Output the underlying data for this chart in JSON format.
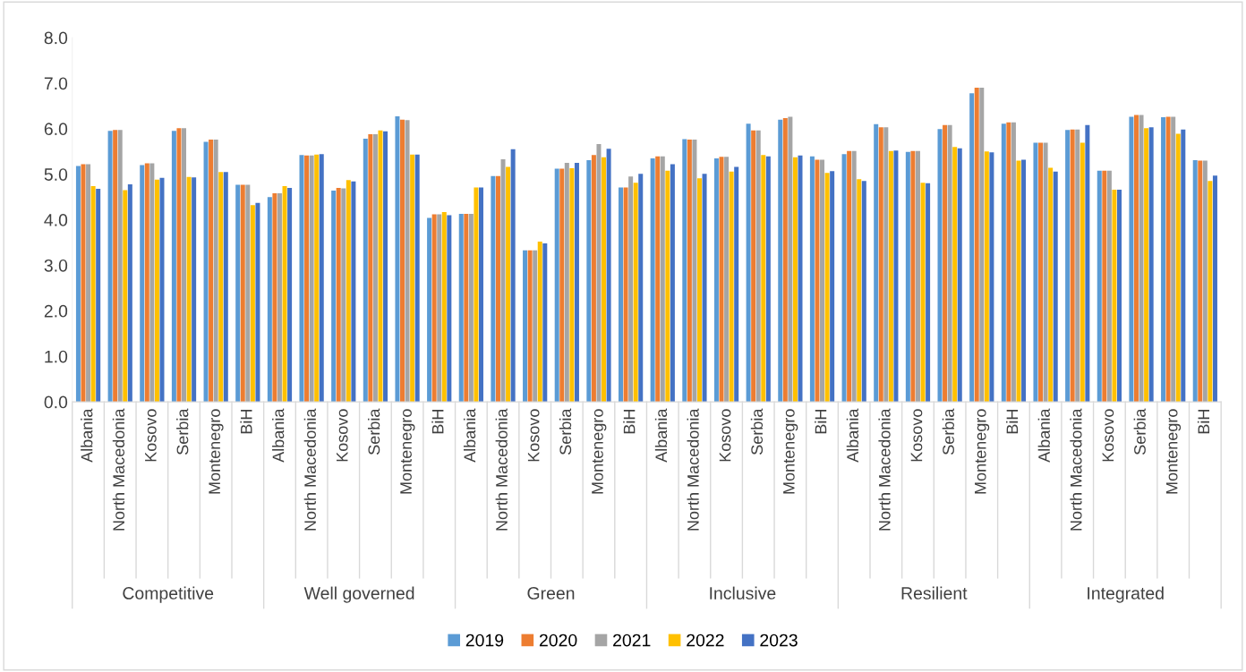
{
  "chart_data": {
    "type": "bar",
    "categories": [
      "Albania",
      "North Macedonia",
      "Kosovo",
      "Serbia",
      "Montenegro",
      "BiH",
      "Albania",
      "North Macedonia",
      "Kosovo",
      "Serbia",
      "Montenegro",
      "BiH",
      "Albania",
      "North Macedonia",
      "Kosovo",
      "Serbia",
      "Montenegro",
      "BiH",
      "Albania",
      "North Macedonia",
      "Kosovo",
      "Serbia",
      "Montenegro",
      "BiH",
      "Albania",
      "North Macedonia",
      "Kosovo",
      "Serbia",
      "Montenegro",
      "BiH",
      "Albania",
      "North Macedonia",
      "Kosovo",
      "Serbia",
      "Montenegro",
      "BiH"
    ],
    "annotations": [
      "Competitive",
      "Well governed",
      "Green",
      "Inclusive",
      "Resilient",
      "Integrated"
    ],
    "series": [
      {
        "name": "2019",
        "color": "#5b9bd5",
        "values": [
          5.18,
          5.95,
          5.2,
          5.95,
          5.71,
          4.77,
          4.5,
          5.42,
          4.64,
          5.78,
          6.27,
          4.04,
          4.13,
          4.96,
          3.33,
          5.12,
          5.31,
          4.71,
          5.35,
          5.77,
          5.35,
          6.11,
          6.2,
          5.39,
          5.44,
          6.1,
          5.49,
          5.99,
          6.78,
          6.11,
          5.69,
          5.97,
          5.08,
          6.26,
          6.25,
          5.31
        ]
      },
      {
        "name": "2020",
        "color": "#ed7d31",
        "values": [
          5.22,
          5.97,
          5.24,
          6.01,
          5.76,
          4.77,
          4.58,
          5.41,
          4.7,
          5.88,
          6.2,
          4.12,
          4.13,
          4.96,
          3.33,
          5.12,
          5.42,
          4.71,
          5.39,
          5.76,
          5.38,
          5.96,
          6.23,
          5.32,
          5.51,
          6.03,
          5.51,
          6.08,
          6.9,
          6.14,
          5.69,
          5.98,
          5.08,
          6.3,
          6.26,
          5.3
        ]
      },
      {
        "name": "2021",
        "color": "#a5a5a5",
        "values": [
          5.22,
          5.97,
          5.24,
          6.01,
          5.76,
          4.77,
          4.58,
          5.41,
          4.69,
          5.88,
          6.19,
          4.12,
          4.13,
          5.33,
          3.33,
          5.25,
          5.66,
          4.95,
          5.39,
          5.76,
          5.38,
          5.96,
          6.26,
          5.32,
          5.51,
          6.03,
          5.51,
          6.08,
          6.9,
          6.14,
          5.69,
          5.98,
          5.08,
          6.3,
          6.26,
          5.3
        ]
      },
      {
        "name": "2022",
        "color": "#ffc000",
        "values": [
          4.74,
          4.65,
          4.88,
          4.94,
          5.05,
          4.32,
          4.74,
          5.43,
          4.87,
          5.96,
          5.43,
          4.17,
          4.71,
          5.16,
          3.52,
          5.13,
          5.37,
          4.81,
          5.08,
          4.91,
          5.06,
          5.42,
          5.37,
          5.03,
          4.89,
          5.51,
          4.81,
          5.6,
          5.5,
          5.3,
          5.14,
          5.69,
          4.66,
          6.01,
          5.89,
          4.85
        ]
      },
      {
        "name": "2023",
        "color": "#4472c4",
        "values": [
          4.68,
          4.78,
          4.92,
          4.93,
          5.05,
          4.37,
          4.7,
          5.44,
          4.84,
          5.94,
          5.43,
          4.1,
          4.71,
          5.55,
          3.48,
          5.25,
          5.56,
          5.01,
          5.22,
          5.01,
          5.16,
          5.39,
          5.41,
          5.07,
          4.85,
          5.52,
          4.8,
          5.57,
          5.48,
          5.32,
          5.06,
          6.08,
          4.66,
          6.03,
          5.98,
          4.97
        ]
      }
    ],
    "ylim": [
      0,
      8
    ],
    "yticks": [
      {
        "value": 0,
        "label": "0.0"
      },
      {
        "value": 1,
        "label": "1.0"
      },
      {
        "value": 2,
        "label": "2.0"
      },
      {
        "value": 3,
        "label": "3.0"
      },
      {
        "value": 4,
        "label": "4.0"
      },
      {
        "value": 5,
        "label": "5.0"
      },
      {
        "value": 6,
        "label": "6.0"
      },
      {
        "value": 7,
        "label": "7.0"
      },
      {
        "value": 8,
        "label": "8.0"
      }
    ],
    "legend": "bottom"
  }
}
